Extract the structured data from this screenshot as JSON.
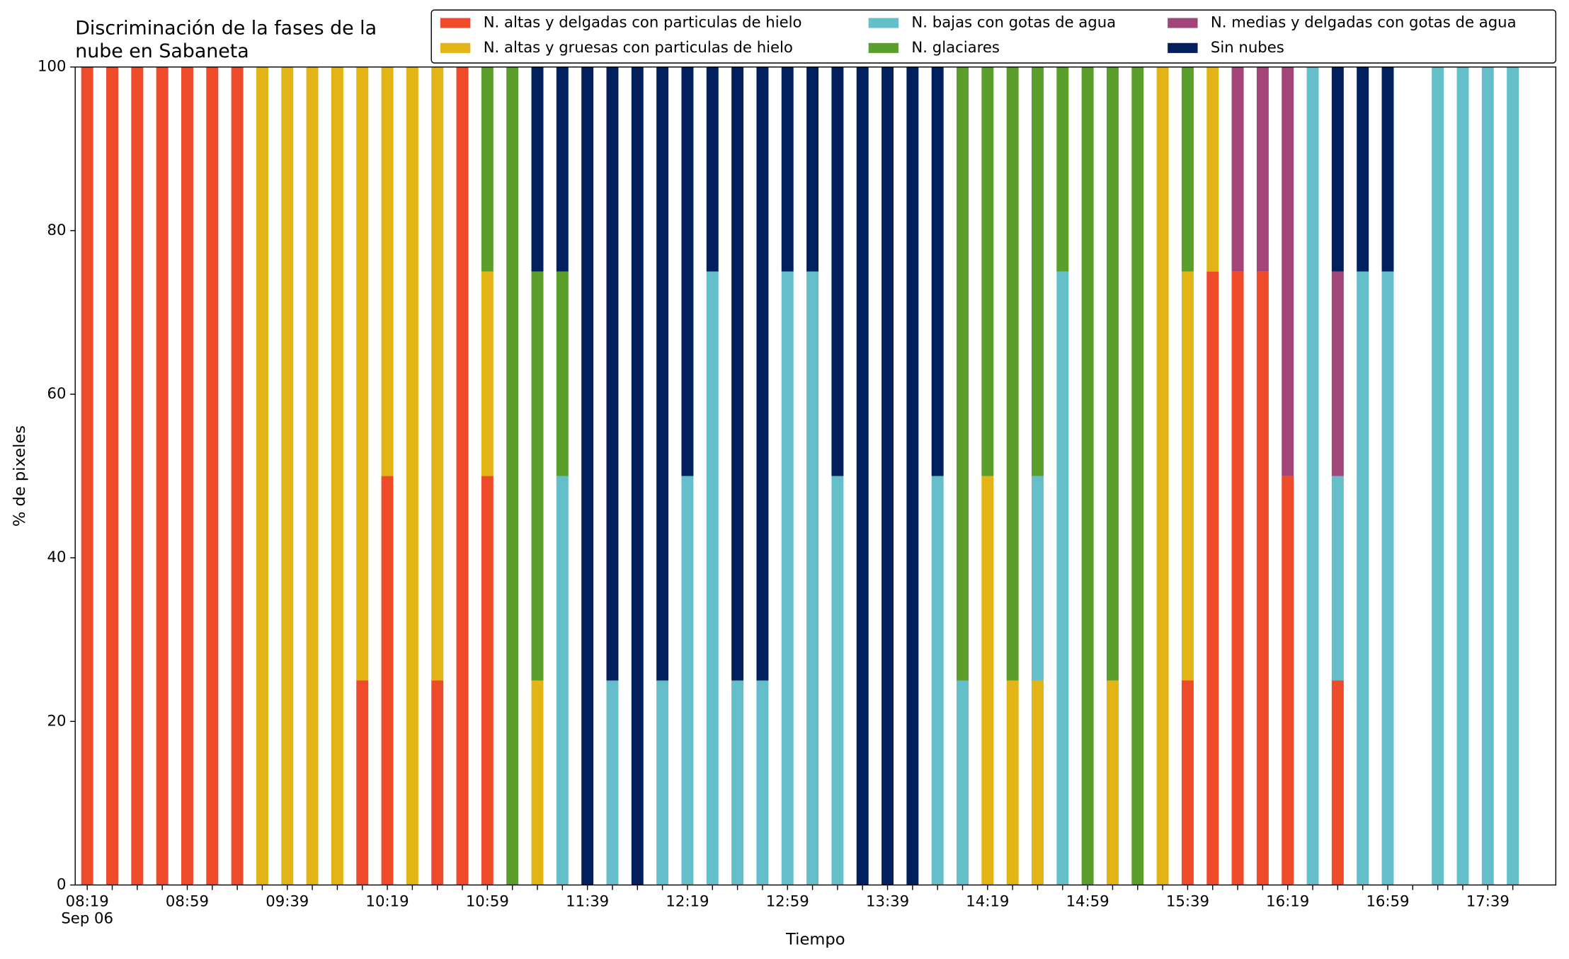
{
  "chart_data": {
    "type": "stacked_bar",
    "title": [
      "Discriminación de la fases de la",
      "nube en Sabaneta"
    ],
    "xlabel": "Tiempo",
    "ylabel": "% de pixeles",
    "date_label": "Sep 06",
    "categories": [
      "08:19",
      null,
      null,
      null,
      "08:59",
      null,
      null,
      null,
      "09:39",
      null,
      null,
      null,
      "10:19",
      null,
      null,
      null,
      "10:59",
      null,
      null,
      null,
      "11:39",
      null,
      null,
      null,
      "12:19",
      null,
      null,
      null,
      "12:59",
      null,
      null,
      null,
      "13:39",
      null,
      null,
      null,
      "14:19",
      null,
      null,
      null,
      "14:59",
      null,
      null,
      null,
      "15:39",
      null,
      null,
      null,
      "16:19",
      null,
      null,
      null,
      "16:59",
      null,
      null,
      null,
      "17:39",
      null
    ],
    "series": [
      {
        "name": "N. altas y delgadas con particulas de hielo",
        "color": "#ee4b2b",
        "values": [
          100,
          100,
          100,
          100,
          100,
          100,
          100,
          0,
          0,
          0,
          0,
          25,
          50,
          0,
          25,
          100,
          50,
          0,
          0,
          0,
          0,
          0,
          0,
          0,
          0,
          0,
          0,
          0,
          0,
          0,
          0,
          0,
          0,
          0,
          0,
          0,
          0,
          0,
          0,
          0,
          0,
          0,
          0,
          0,
          25,
          75,
          75,
          75,
          50,
          0,
          25,
          0,
          0,
          0,
          0,
          0,
          0,
          0
        ]
      },
      {
        "name": "N. altas y gruesas con particulas de hielo",
        "color": "#e3b416",
        "values": [
          0,
          0,
          0,
          0,
          0,
          0,
          0,
          100,
          100,
          100,
          100,
          75,
          50,
          100,
          75,
          0,
          25,
          0,
          25,
          0,
          0,
          0,
          0,
          0,
          0,
          0,
          0,
          0,
          0,
          0,
          0,
          0,
          0,
          0,
          0,
          0,
          50,
          25,
          25,
          0,
          0,
          25,
          0,
          100,
          50,
          25,
          0,
          0,
          0,
          0,
          0,
          0,
          0,
          0,
          0,
          0,
          0,
          0
        ]
      },
      {
        "name": "N. bajas con gotas de agua",
        "color": "#64bfca",
        "values": [
          0,
          0,
          0,
          0,
          0,
          0,
          0,
          0,
          0,
          0,
          0,
          0,
          0,
          0,
          0,
          0,
          0,
          0,
          0,
          50,
          0,
          25,
          0,
          25,
          50,
          75,
          25,
          25,
          75,
          75,
          50,
          0,
          0,
          0,
          50,
          25,
          0,
          0,
          25,
          75,
          0,
          0,
          0,
          0,
          0,
          0,
          0,
          0,
          0,
          100,
          25,
          75,
          75,
          0,
          100,
          100,
          100,
          100
        ]
      },
      {
        "name": "N. glaciares",
        "color": "#5c9e2b",
        "values": [
          0,
          0,
          0,
          0,
          0,
          0,
          0,
          0,
          0,
          0,
          0,
          0,
          0,
          0,
          0,
          0,
          25,
          100,
          50,
          25,
          0,
          0,
          0,
          0,
          0,
          0,
          0,
          0,
          0,
          0,
          0,
          0,
          0,
          0,
          0,
          75,
          50,
          75,
          50,
          25,
          100,
          75,
          100,
          0,
          25,
          0,
          0,
          0,
          0,
          0,
          0,
          0,
          0,
          0,
          0,
          0,
          0,
          0
        ]
      },
      {
        "name": "N. medias y delgadas con gotas de agua",
        "color": "#a4457a",
        "values": [
          0,
          0,
          0,
          0,
          0,
          0,
          0,
          0,
          0,
          0,
          0,
          0,
          0,
          0,
          0,
          0,
          0,
          0,
          0,
          0,
          0,
          0,
          0,
          0,
          0,
          0,
          0,
          0,
          0,
          0,
          0,
          0,
          0,
          0,
          0,
          0,
          0,
          0,
          0,
          0,
          0,
          0,
          0,
          0,
          0,
          0,
          25,
          25,
          50,
          0,
          25,
          0,
          0,
          0,
          0,
          0,
          0,
          0
        ]
      },
      {
        "name": "Sin nubes",
        "color": "#03205e",
        "values": [
          0,
          0,
          0,
          0,
          0,
          0,
          0,
          0,
          0,
          0,
          0,
          0,
          0,
          0,
          0,
          0,
          0,
          0,
          25,
          25,
          100,
          75,
          100,
          75,
          50,
          25,
          75,
          75,
          25,
          25,
          50,
          100,
          100,
          100,
          50,
          0,
          0,
          0,
          0,
          0,
          0,
          0,
          0,
          0,
          0,
          0,
          0,
          0,
          0,
          0,
          25,
          25,
          25,
          0,
          0,
          0,
          0,
          0
        ]
      }
    ],
    "ylim": [
      0,
      100
    ],
    "yticks": [
      0,
      20,
      40,
      60,
      80,
      100
    ],
    "legend": "upper right"
  }
}
